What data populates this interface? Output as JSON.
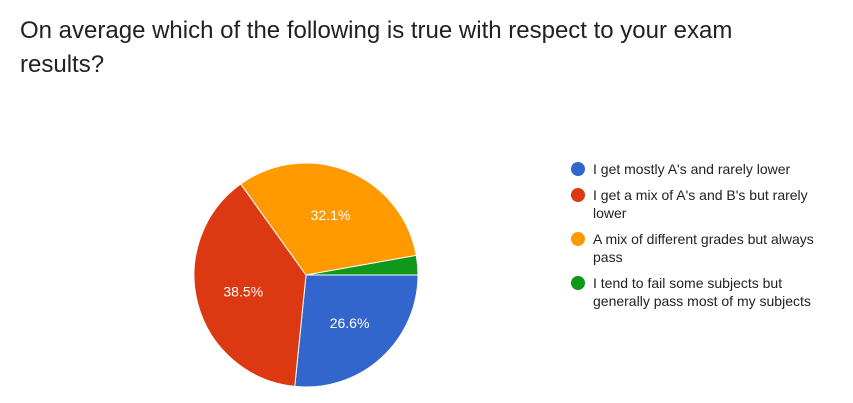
{
  "chart_data": {
    "type": "pie",
    "title": "On average which of the following is true with respect to your exam results?",
    "slices": [
      {
        "label": "I get mostly A's and rarely lower",
        "value": 26.6,
        "display": "26.6%",
        "color": "#3366cc"
      },
      {
        "label": "I get a mix of A's and B's but rarely lower",
        "value": 38.5,
        "display": "38.5%",
        "color": "#dc3912"
      },
      {
        "label": "A mix of different grades but always pass",
        "value": 32.1,
        "display": "32.1%",
        "color": "#ff9900"
      },
      {
        "label": "I tend to fail some subjects but generally pass most of my subjects",
        "value": 2.8,
        "display": "",
        "color": "#109618"
      }
    ],
    "start_direction": "right",
    "rotation": "clockwise",
    "legend_position": "right"
  }
}
